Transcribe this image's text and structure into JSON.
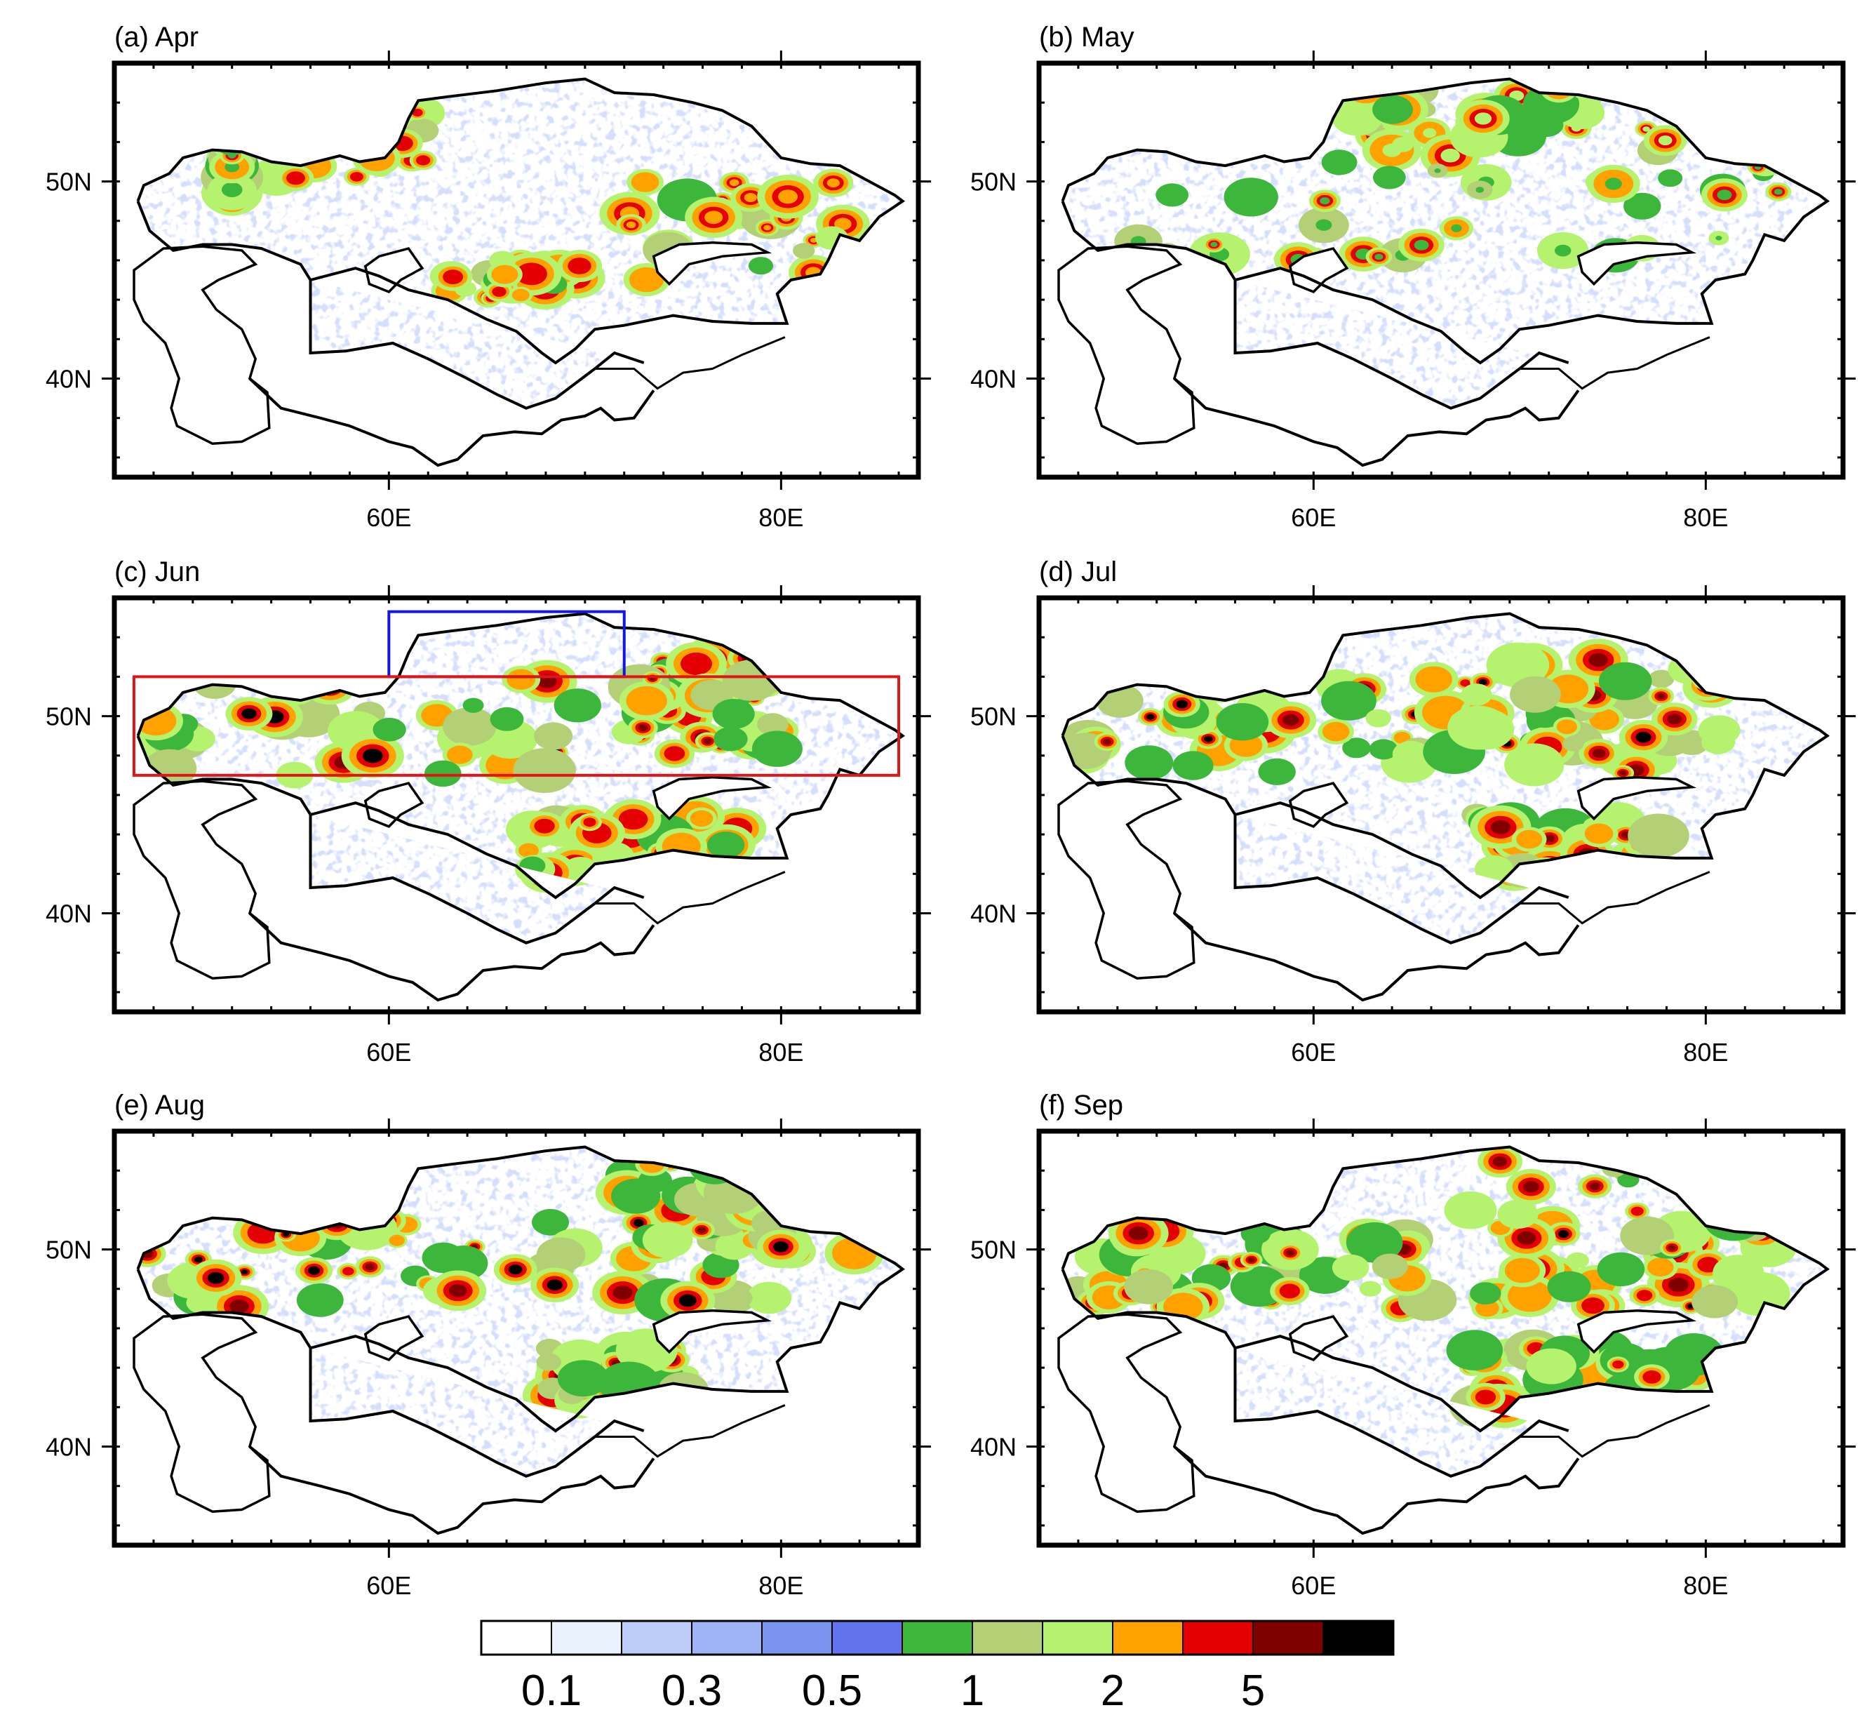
{
  "figure": {
    "panels": [
      {
        "label": "(a) Apr",
        "month": "Apr",
        "boxes": []
      },
      {
        "label": "(b) May",
        "month": "May",
        "boxes": []
      },
      {
        "label": "(c) Jun",
        "month": "Jun",
        "boxes": [
          {
            "color": "#1515e0",
            "lon": [
              60,
              72
            ],
            "lat": [
              52,
              55.3
            ]
          },
          {
            "color": "#e01515",
            "lon": [
              47,
              86
            ],
            "lat": [
              47,
              52
            ]
          }
        ]
      },
      {
        "label": "(d) Jul",
        "month": "Jul",
        "boxes": []
      },
      {
        "label": "(e) Aug",
        "month": "Aug",
        "boxes": []
      },
      {
        "label": "(f) Sep",
        "month": "Sep",
        "boxes": []
      }
    ],
    "axes": {
      "lon_range": [
        46,
        87
      ],
      "lat_range": [
        35,
        56
      ],
      "x_ticks": [
        {
          "value": 60,
          "label": "60E"
        },
        {
          "value": 80,
          "label": "80E"
        }
      ],
      "y_ticks": [
        {
          "value": 40,
          "label": "40N"
        },
        {
          "value": 50,
          "label": "50N"
        }
      ]
    },
    "colorbar": {
      "colors": [
        "#ffffff",
        "#e9f2fd",
        "#bcccf9",
        "#9cb3f6",
        "#7a93ef",
        "#6373ee",
        "#3cb73c",
        "#b3d076",
        "#b5f36e",
        "#ffa200",
        "#e40000",
        "#800000",
        "#000000"
      ],
      "labels": [
        {
          "boundary": 1,
          "text": "0.1"
        },
        {
          "boundary": 3,
          "text": "0.3"
        },
        {
          "boundary": 5,
          "text": "0.5"
        },
        {
          "boundary": 7,
          "text": "1"
        },
        {
          "boundary": 9,
          "text": "2"
        },
        {
          "boundary": 11,
          "text": "5"
        }
      ]
    }
  }
}
